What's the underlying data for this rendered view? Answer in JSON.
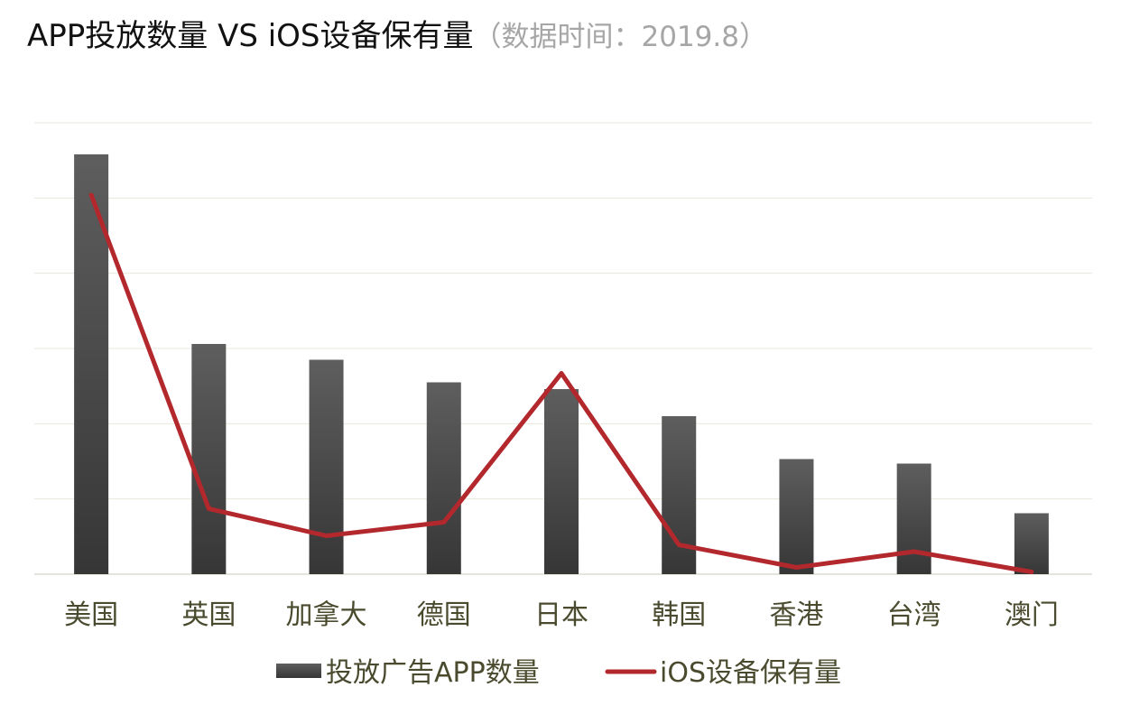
{
  "chart_data": {
    "type": "bar+line",
    "title": "APP投放数量 VS iOS设备保有量",
    "subtitle": "（数据时间：2019.8）",
    "categories": [
      "美国",
      "英国",
      "加拿大",
      "德国",
      "日本",
      "韩国",
      "香港",
      "台湾",
      "澳门"
    ],
    "series": [
      {
        "name": "投放广告APP数量",
        "type": "bar",
        "color": "#3d3d3d",
        "values": [
          93,
          51,
          47.5,
          42.5,
          41,
          35,
          25.5,
          24.5,
          13.5
        ]
      },
      {
        "name": "iOS设备保有量",
        "type": "line",
        "color": "#b3282d",
        "values": [
          84,
          14.5,
          8.5,
          11.5,
          44.5,
          6.5,
          1.5,
          5,
          0.5
        ]
      }
    ],
    "ylim": [
      0,
      100
    ],
    "gridlines": 6,
    "legend": "bottom",
    "xlabel": "",
    "ylabel": ""
  }
}
